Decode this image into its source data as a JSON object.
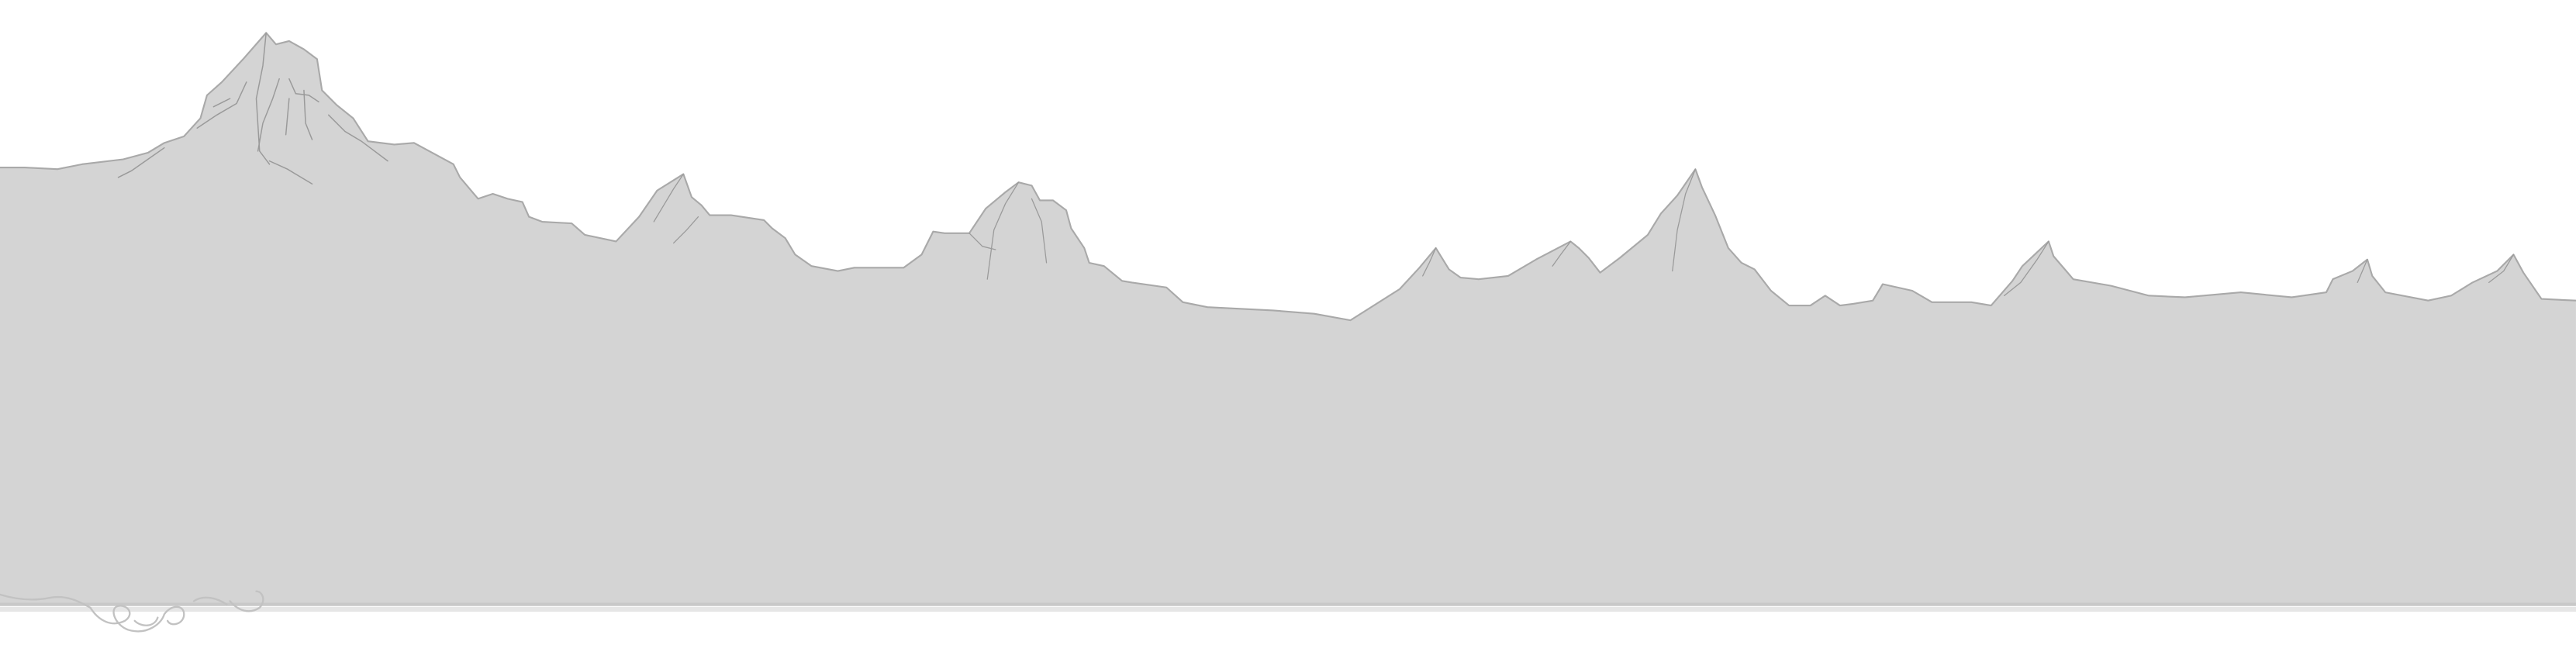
{
  "scene": {
    "background_color": "#ffffff",
    "mountain_fill_color": "#d4d4d4",
    "outline_color": "#a9a9a9",
    "ground_line_color": "#c8c8c8",
    "sketch_line_color": "#9a9a9a"
  }
}
